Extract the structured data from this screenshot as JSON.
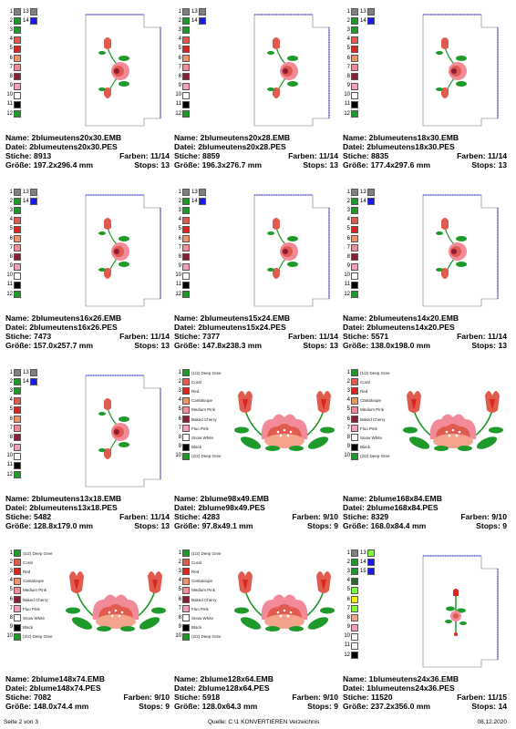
{
  "labels": {
    "name": "Name:",
    "file": "Datei:",
    "stitches": "Stiche:",
    "colors": "Farben:",
    "size": "Größe:",
    "stops": "Stops:"
  },
  "footer": {
    "page": "Seite 2 von 3",
    "source": "Quelle: C:\\1 KONVERTIEREN Verzeichnis",
    "date": "08.12.2020"
  },
  "colors": {
    "gray": "#808080",
    "blue": "#1a1aee",
    "green": "#1e9a2a",
    "coral": "#e05a4e",
    "red": "#d9261e",
    "cantaloupe": "#f09468",
    "mediumpink": "#f28a9a",
    "bakedcherry": "#8b1c34",
    "flupink": "#f5a0b8",
    "white": "#ffffff",
    "black": "#000000",
    "lime": "#7cfc3a",
    "yellow": "#f0f000",
    "darkgreen": "#2a6a2a",
    "deepgreen": "#156b28",
    "salmon": "#f4a38c"
  },
  "designs": [
    {
      "name": "2blumeutens20x30.EMB",
      "file": "2blumeutens20x30.PES",
      "stitches": "8913",
      "colors": "11/14",
      "size": "197.2x296.4 mm",
      "stops": "13",
      "kind": "tall",
      "swatches": [
        [
          "1",
          "gray",
          "13",
          "gray"
        ],
        [
          "2",
          "green",
          "14",
          "blue"
        ],
        [
          "3",
          "green"
        ],
        [
          "4",
          "coral"
        ],
        [
          "5",
          "red"
        ],
        [
          "6",
          "cantaloupe"
        ],
        [
          "7",
          "mediumpink"
        ],
        [
          "8",
          "bakedcherry"
        ],
        [
          "9",
          "flupink"
        ],
        [
          "10",
          "white"
        ],
        [
          "11",
          "black"
        ],
        [
          "12",
          "green"
        ]
      ]
    },
    {
      "name": "2blumeutens20x28.EMB",
      "file": "2blumeutens20x28.PES",
      "stitches": "8859",
      "colors": "11/14",
      "size": "196.3x276.7 mm",
      "stops": "13",
      "kind": "tall",
      "swatches": [
        [
          "1",
          "gray",
          "13",
          "gray"
        ],
        [
          "2",
          "green",
          "14",
          "blue"
        ],
        [
          "3",
          "green"
        ],
        [
          "4",
          "coral"
        ],
        [
          "5",
          "red"
        ],
        [
          "6",
          "cantaloupe"
        ],
        [
          "7",
          "mediumpink"
        ],
        [
          "8",
          "bakedcherry"
        ],
        [
          "9",
          "flupink"
        ],
        [
          "10",
          "white"
        ],
        [
          "11",
          "black"
        ],
        [
          "12",
          "green"
        ]
      ]
    },
    {
      "name": "2blumeutens18x30.EMB",
      "file": "2blumeutens18x30.PES",
      "stitches": "8835",
      "colors": "11/14",
      "size": "177.4x297.6 mm",
      "stops": "13",
      "kind": "tall",
      "swatches": [
        [
          "1",
          "gray",
          "13",
          "gray"
        ],
        [
          "2",
          "green",
          "14",
          "blue"
        ],
        [
          "3",
          "green"
        ],
        [
          "4",
          "coral"
        ],
        [
          "5",
          "red"
        ],
        [
          "6",
          "cantaloupe"
        ],
        [
          "7",
          "mediumpink"
        ],
        [
          "8",
          "bakedcherry"
        ],
        [
          "9",
          "flupink"
        ],
        [
          "10",
          "white"
        ],
        [
          "11",
          "black"
        ],
        [
          "12",
          "green"
        ]
      ]
    },
    {
      "name": "2blumeutens16x26.EMB",
      "file": "2blumeutens16x26.PES",
      "stitches": "7473",
      "colors": "11/14",
      "size": "157.0x257.7 mm",
      "stops": "13",
      "kind": "tall",
      "swatches": [
        [
          "1",
          "gray",
          "13",
          "gray"
        ],
        [
          "2",
          "green",
          "14",
          "blue"
        ],
        [
          "3",
          "green"
        ],
        [
          "4",
          "coral"
        ],
        [
          "5",
          "red"
        ],
        [
          "6",
          "cantaloupe"
        ],
        [
          "7",
          "mediumpink"
        ],
        [
          "8",
          "bakedcherry"
        ],
        [
          "9",
          "flupink"
        ],
        [
          "10",
          "white"
        ],
        [
          "11",
          "black"
        ],
        [
          "12",
          "green"
        ]
      ]
    },
    {
      "name": "2blumeutens15x24.EMB",
      "file": "2blumeutens15x24.PES",
      "stitches": "7377",
      "colors": "11/14",
      "size": "147.8x238.3 mm",
      "stops": "13",
      "kind": "tall",
      "swatches": [
        [
          "1",
          "gray",
          "13",
          "gray"
        ],
        [
          "2",
          "green",
          "14",
          "blue"
        ],
        [
          "3",
          "green"
        ],
        [
          "4",
          "coral"
        ],
        [
          "5",
          "red"
        ],
        [
          "6",
          "cantaloupe"
        ],
        [
          "7",
          "mediumpink"
        ],
        [
          "8",
          "bakedcherry"
        ],
        [
          "9",
          "flupink"
        ],
        [
          "10",
          "white"
        ],
        [
          "11",
          "black"
        ],
        [
          "12",
          "green"
        ]
      ]
    },
    {
      "name": "2blumeutens14x20.EMB",
      "file": "2blumeutens14x20.PES",
      "stitches": "5571",
      "colors": "11/14",
      "size": "138.0x198.0 mm",
      "stops": "13",
      "kind": "tall",
      "swatches": [
        [
          "1",
          "gray",
          "13",
          "gray"
        ],
        [
          "2",
          "green",
          "14",
          "blue"
        ],
        [
          "3",
          "green"
        ],
        [
          "4",
          "coral"
        ],
        [
          "5",
          "red"
        ],
        [
          "6",
          "cantaloupe"
        ],
        [
          "7",
          "mediumpink"
        ],
        [
          "8",
          "bakedcherry"
        ],
        [
          "9",
          "flupink"
        ],
        [
          "10",
          "white"
        ],
        [
          "11",
          "black"
        ],
        [
          "12",
          "green"
        ]
      ]
    },
    {
      "name": "2blumeutens13x18.EMB",
      "file": "2blumeutens13x18.PES",
      "stitches": "5482",
      "colors": "11/14",
      "size": "128.8x179.0 mm",
      "stops": "13",
      "kind": "tall",
      "swatches": [
        [
          "1",
          "gray",
          "13",
          "gray"
        ],
        [
          "2",
          "green",
          "14",
          "blue"
        ],
        [
          "3",
          "green"
        ],
        [
          "4",
          "coral"
        ],
        [
          "5",
          "red"
        ],
        [
          "6",
          "cantaloupe"
        ],
        [
          "7",
          "mediumpink"
        ],
        [
          "8",
          "bakedcherry"
        ],
        [
          "9",
          "flupink"
        ],
        [
          "10",
          "white"
        ],
        [
          "11",
          "black"
        ],
        [
          "12",
          "green"
        ]
      ]
    },
    {
      "name": "2blume98x49.EMB",
      "file": "2blume98x49.PES",
      "stitches": "4283",
      "colors": "9/10",
      "size": "97.8x49.1 mm",
      "stops": "9",
      "kind": "wide",
      "swatches": [
        [
          "1",
          "green",
          "",
          "",
          "(1/2) Deep Gree"
        ],
        [
          "2",
          "coral",
          "",
          "",
          "Coral"
        ],
        [
          "3",
          "red",
          "",
          "",
          "Red"
        ],
        [
          "4",
          "cantaloupe",
          "",
          "",
          "Cantaloupe"
        ],
        [
          "5",
          "mediumpink",
          "",
          "",
          "Medium Pink"
        ],
        [
          "6",
          "bakedcherry",
          "",
          "",
          "Baked Cherry"
        ],
        [
          "7",
          "flupink",
          "",
          "",
          "Fluo Pink"
        ],
        [
          "8",
          "white",
          "",
          "",
          "Snow White"
        ],
        [
          "9",
          "black",
          "",
          "",
          "Black"
        ],
        [
          "10",
          "green",
          "",
          "",
          "(2/2) Deep Gree"
        ]
      ]
    },
    {
      "name": "2blume168x84.EMB",
      "file": "2blume168x84.PES",
      "stitches": "8329",
      "colors": "9/10",
      "size": "168.0x84.4 mm",
      "stops": "9",
      "kind": "wide",
      "swatches": [
        [
          "1",
          "green",
          "",
          "",
          "(1/2) Deep Gree"
        ],
        [
          "2",
          "coral",
          "",
          "",
          "Coral"
        ],
        [
          "3",
          "red",
          "",
          "",
          "Red"
        ],
        [
          "4",
          "cantaloupe",
          "",
          "",
          "Cantaloupe"
        ],
        [
          "5",
          "mediumpink",
          "",
          "",
          "Medium Pink"
        ],
        [
          "6",
          "bakedcherry",
          "",
          "",
          "Baked Cherry"
        ],
        [
          "7",
          "flupink",
          "",
          "",
          "Fluo Pink"
        ],
        [
          "8",
          "white",
          "",
          "",
          "Snow White"
        ],
        [
          "9",
          "black",
          "",
          "",
          "Black"
        ],
        [
          "10",
          "green",
          "",
          "",
          "(2/2) Deep Gree"
        ]
      ]
    },
    {
      "name": "2blume148x74.EMB",
      "file": "2blume148x74.PES",
      "stitches": "7082",
      "colors": "9/10",
      "size": "148.0x74.4 mm",
      "stops": "9",
      "kind": "wide",
      "swatches": [
        [
          "1",
          "green",
          "",
          "",
          "(1/2) Deep Gree"
        ],
        [
          "2",
          "coral",
          "",
          "",
          "Coral"
        ],
        [
          "3",
          "red",
          "",
          "",
          "Red"
        ],
        [
          "4",
          "cantaloupe",
          "",
          "",
          "Cantaloupe"
        ],
        [
          "5",
          "mediumpink",
          "",
          "",
          "Medium Pink"
        ],
        [
          "6",
          "bakedcherry",
          "",
          "",
          "Baked Cherry"
        ],
        [
          "7",
          "flupink",
          "",
          "",
          "Fluo Pink"
        ],
        [
          "8",
          "white",
          "",
          "",
          "Snow White"
        ],
        [
          "9",
          "black",
          "",
          "",
          "Black"
        ],
        [
          "10",
          "green",
          "",
          "",
          "(2/2) Deep Gree"
        ]
      ]
    },
    {
      "name": "2blume128x64.EMB",
      "file": "2blume128x64.PES",
      "stitches": "5918",
      "colors": "9/10",
      "size": "128.0x64.3 mm",
      "stops": "9",
      "kind": "wide",
      "swatches": [
        [
          "1",
          "green",
          "",
          "",
          "(1/2) Deep Gree"
        ],
        [
          "2",
          "coral",
          "",
          "",
          "Coral"
        ],
        [
          "3",
          "red",
          "",
          "",
          "Red"
        ],
        [
          "4",
          "cantaloupe",
          "",
          "",
          "Cantaloupe"
        ],
        [
          "5",
          "mediumpink",
          "",
          "",
          "Medium Pink"
        ],
        [
          "6",
          "bakedcherry",
          "",
          "",
          "Baked Cherry"
        ],
        [
          "7",
          "flupink",
          "",
          "",
          "Fluo Pink"
        ],
        [
          "8",
          "white",
          "",
          "",
          "Snow White"
        ],
        [
          "9",
          "black",
          "",
          "",
          "Black"
        ],
        [
          "10",
          "green",
          "",
          "",
          "(2/2) Deep Gree"
        ]
      ]
    },
    {
      "name": "1blumeutens24x36.EMB",
      "file": "1blumeutens24x36.PES",
      "stitches": "11520",
      "colors": "11/15",
      "size": "237.2x356.0 mm",
      "stops": "14",
      "kind": "single",
      "swatches": [
        [
          "1",
          "gray",
          "13",
          "lime"
        ],
        [
          "2",
          "green",
          "14",
          "blue"
        ],
        [
          "3",
          "green",
          "15",
          "blue"
        ],
        [
          "4",
          "darkgreen"
        ],
        [
          "5",
          "lime"
        ],
        [
          "6",
          "yellow"
        ],
        [
          "7",
          "lime"
        ],
        [
          "8",
          "salmon"
        ],
        [
          "9",
          "flupink"
        ],
        [
          "10",
          "white"
        ],
        [
          "11",
          "white"
        ],
        [
          "12",
          "black"
        ]
      ]
    }
  ]
}
